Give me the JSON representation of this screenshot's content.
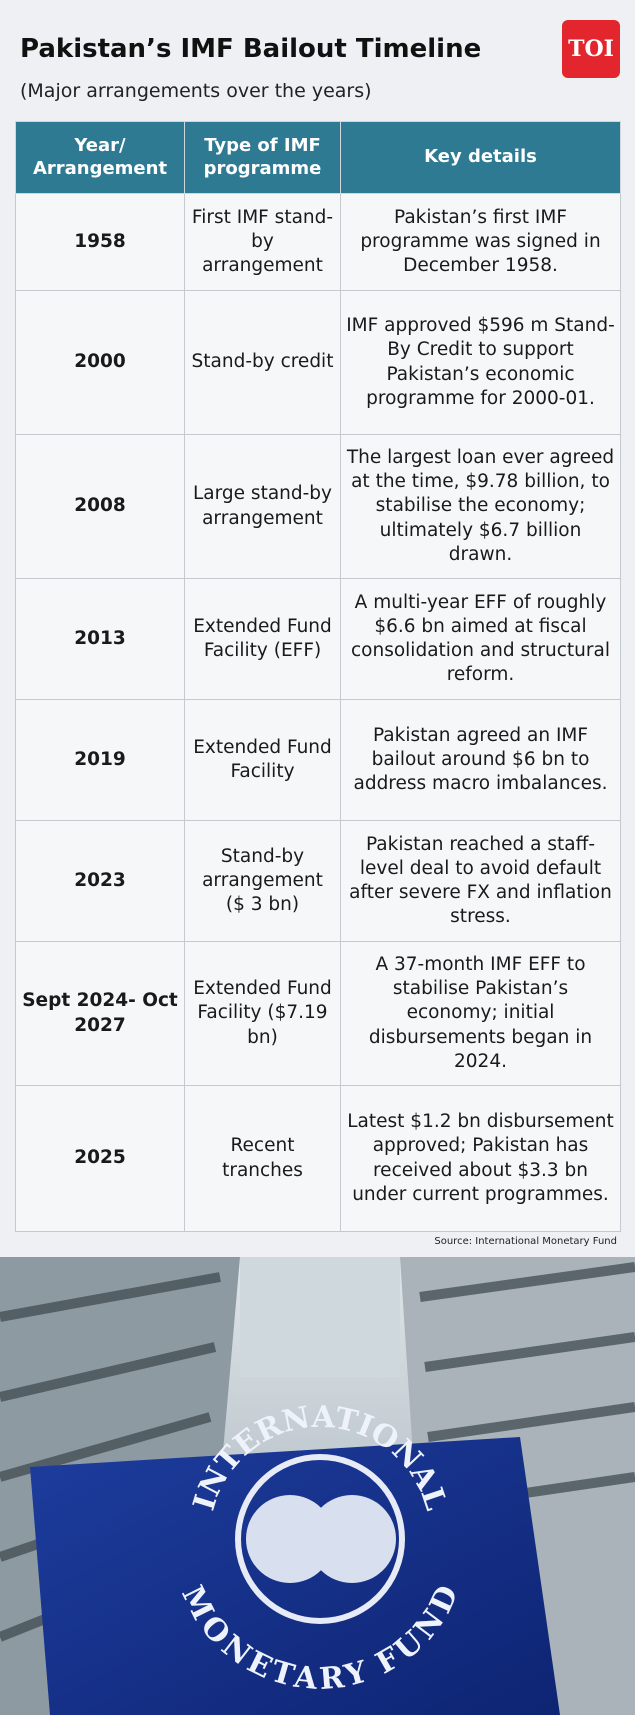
{
  "header": {
    "title": "Pakistan’s IMF Bailout Timeline",
    "subtitle": "(Major arrangements over the years)",
    "logo": "TOI"
  },
  "table": {
    "columns": [
      "Year/ Arrangement",
      "Type of IMF programme",
      "Key details"
    ],
    "rows": [
      [
        "1958",
        "First IMF stand-by arrangement",
        "Pakistan’s first IMF programme was signed in December 1958."
      ],
      [
        "2000",
        "Stand-by credit",
        "IMF approved $596 m Stand-By Credit to support Pakistan’s economic programme for 2000-01."
      ],
      [
        "2008",
        "Large stand-by arrangement",
        "The largest loan ever agreed at the time, $9.78 billion, to stabilise the economy; ultimately $6.7 billion drawn."
      ],
      [
        "2013",
        "Extended Fund Facility (EFF)",
        "A multi-year EFF of roughly $6.6 bn aimed at fiscal consolidation and structural reform."
      ],
      [
        "2019",
        "Extended Fund Facility",
        "Pakistan agreed an IMF bailout around $6 bn to address macro imbalances."
      ],
      [
        "2023",
        "Stand-by arrangement ($ 3 bn)",
        "Pakistan reached a staff-level deal to avoid default after severe FX and inflation stress."
      ],
      [
        "Sept 2024- Oct 2027",
        "Extended Fund Facility ($7.19 bn)",
        "A 37-month IMF EFF to stabilise Pakistan’s economy; initial disbursements began in 2024."
      ],
      [
        "2025",
        "Recent tranches",
        "Latest $1.2 bn disbursement approved; Pakistan has received about $3.3 bn under current programmes."
      ]
    ]
  },
  "source": "Source: International Monetary Fund",
  "photo": {
    "logo_top": "INTERNATIONAL",
    "logo_bottom": "MONETARY FUND"
  }
}
